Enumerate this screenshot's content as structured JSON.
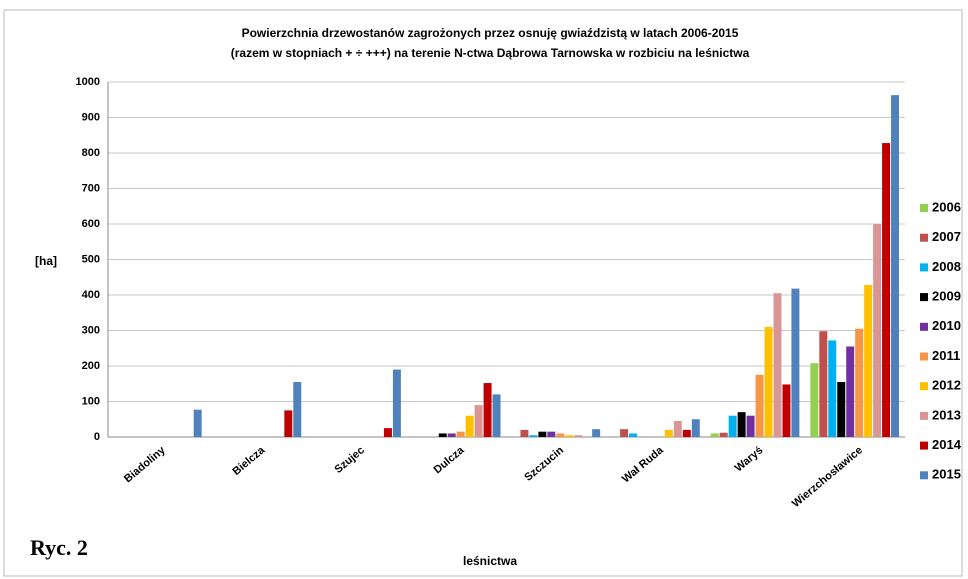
{
  "chart_data": {
    "type": "bar",
    "title": "Powierzchnia drzewostanów zagrożonych  przez osnuję gwiaździstą w latach 2006-2015",
    "subtitle": "(razem w stopniach + ÷ +++) na terenie N-ctwa Dąbrowa Tarnowska w rozbiciu na leśnictwa",
    "y_label": "[ha]",
    "x_label": "leśnictwa",
    "annotation": "Ryc. 2",
    "categories": [
      "Biadoliny",
      "Bielcza",
      "Szujec",
      "Dulcza",
      "Szczucin",
      "Wał Ruda",
      "Waryś",
      "Wierzchosławice"
    ],
    "series": [
      {
        "name": "2006",
        "color": "#92d050",
        "values": [
          0,
          0,
          0,
          0,
          0,
          0,
          10,
          208
        ]
      },
      {
        "name": "2007",
        "color": "#c0504d",
        "values": [
          0,
          0,
          0,
          0,
          20,
          22,
          12,
          298
        ]
      },
      {
        "name": "2008",
        "color": "#00b0f0",
        "values": [
          0,
          0,
          0,
          0,
          5,
          10,
          60,
          272
        ]
      },
      {
        "name": "2009",
        "color": "#000000",
        "values": [
          0,
          0,
          0,
          10,
          15,
          0,
          70,
          155
        ]
      },
      {
        "name": "2010",
        "color": "#7030a0",
        "values": [
          0,
          0,
          0,
          10,
          15,
          0,
          60,
          255
        ]
      },
      {
        "name": "2011",
        "color": "#f79646",
        "values": [
          0,
          0,
          0,
          15,
          10,
          0,
          175,
          305
        ]
      },
      {
        "name": "2012",
        "color": "#ffc000",
        "values": [
          0,
          0,
          0,
          60,
          5,
          20,
          310,
          428
        ]
      },
      {
        "name": "2013",
        "color": "#d99694",
        "values": [
          0,
          0,
          0,
          90,
          5,
          45,
          405,
          600
        ]
      },
      {
        "name": "2014",
        "color": "#c00000",
        "values": [
          0,
          75,
          25,
          152,
          0,
          20,
          148,
          828
        ]
      },
      {
        "name": "2015",
        "color": "#4f81bd",
        "values": [
          77,
          155,
          190,
          120,
          22,
          50,
          418,
          963
        ]
      }
    ],
    "ylim": [
      0,
      1000
    ],
    "yticks": [
      0,
      100,
      200,
      300,
      400,
      500,
      600,
      700,
      800,
      900,
      1000
    ],
    "grid": true
  }
}
